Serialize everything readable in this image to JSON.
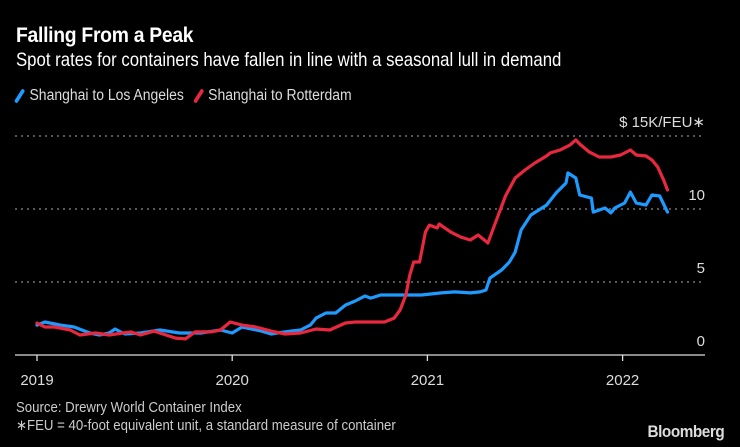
{
  "header": {
    "title": "Falling From a Peak",
    "subtitle": "Spot rates for containers have fallen in line with a seasonal lull in demand"
  },
  "footer": {
    "source": "Source: Drewry World Container Index",
    "note": "∗FEU = 40-foot equivalent unit, a standard measure of container",
    "logo": "Bloomberg"
  },
  "chart_data": {
    "type": "line",
    "title": "Falling From a Peak",
    "subtitle": "Spot rates for containers have fallen in line with a seasonal lull in demand",
    "xlabel": "",
    "ylabel": "$ 15K/FEU∗",
    "unit_label": "$ 15K/FEU∗",
    "ylim": [
      0,
      15
    ],
    "xlim": [
      2018.9,
      2022.4
    ],
    "yticks": [
      0,
      5,
      10,
      15
    ],
    "ytick_labels": [
      "0",
      "5",
      "10",
      "$ 15K/FEU∗"
    ],
    "xticks": [
      2019,
      2020,
      2021,
      2022
    ],
    "xtick_labels": [
      "2019",
      "2020",
      "2021",
      "2022"
    ],
    "grid": "horizontal dotted",
    "legend_position": "top-left",
    "series": [
      {
        "name": "Shanghai to Los Angeles",
        "color": "#1e9bff",
        "points": [
          [
            2019.0,
            2.05
          ],
          [
            2019.04,
            2.26
          ],
          [
            2019.12,
            2.05
          ],
          [
            2019.19,
            1.92
          ],
          [
            2019.27,
            1.51
          ],
          [
            2019.32,
            1.37
          ],
          [
            2019.37,
            1.51
          ],
          [
            2019.4,
            1.78
          ],
          [
            2019.45,
            1.44
          ],
          [
            2019.53,
            1.51
          ],
          [
            2019.63,
            1.71
          ],
          [
            2019.73,
            1.51
          ],
          [
            2019.84,
            1.51
          ],
          [
            2019.94,
            1.71
          ],
          [
            2020.0,
            1.51
          ],
          [
            2020.05,
            1.92
          ],
          [
            2020.15,
            1.64
          ],
          [
            2020.2,
            1.44
          ],
          [
            2020.23,
            1.51
          ],
          [
            2020.3,
            1.64
          ],
          [
            2020.35,
            1.71
          ],
          [
            2020.4,
            2.05
          ],
          [
            2020.43,
            2.53
          ],
          [
            2020.48,
            2.88
          ],
          [
            2020.53,
            2.88
          ],
          [
            2020.58,
            3.42
          ],
          [
            2020.63,
            3.7
          ],
          [
            2020.68,
            4.04
          ],
          [
            2020.71,
            3.9
          ],
          [
            2020.76,
            4.11
          ],
          [
            2020.84,
            4.11
          ],
          [
            2020.97,
            4.11
          ],
          [
            2021.07,
            4.25
          ],
          [
            2021.14,
            4.32
          ],
          [
            2021.22,
            4.25
          ],
          [
            2021.27,
            4.32
          ],
          [
            2021.3,
            4.45
          ],
          [
            2021.32,
            5.27
          ],
          [
            2021.38,
            5.82
          ],
          [
            2021.42,
            6.37
          ],
          [
            2021.45,
            7.05
          ],
          [
            2021.48,
            8.56
          ],
          [
            2021.53,
            9.59
          ],
          [
            2021.61,
            10.27
          ],
          [
            2021.66,
            11.1
          ],
          [
            2021.71,
            11.78
          ],
          [
            2021.72,
            12.47
          ],
          [
            2021.76,
            12.12
          ],
          [
            2021.78,
            10.96
          ],
          [
            2021.84,
            10.75
          ],
          [
            2021.85,
            9.79
          ],
          [
            2021.91,
            10.07
          ],
          [
            2021.94,
            9.73
          ],
          [
            2021.96,
            10.07
          ],
          [
            2022.01,
            10.41
          ],
          [
            2022.04,
            11.16
          ],
          [
            2022.07,
            10.41
          ],
          [
            2022.12,
            10.27
          ],
          [
            2022.15,
            10.96
          ],
          [
            2022.19,
            10.89
          ],
          [
            2022.22,
            10.07
          ],
          [
            2022.23,
            9.79
          ]
        ]
      },
      {
        "name": "Shanghai to Rotterdam",
        "color": "#e8283f",
        "points": [
          [
            2019.0,
            2.19
          ],
          [
            2019.04,
            1.92
          ],
          [
            2019.09,
            1.92
          ],
          [
            2019.17,
            1.71
          ],
          [
            2019.22,
            1.37
          ],
          [
            2019.3,
            1.51
          ],
          [
            2019.37,
            1.37
          ],
          [
            2019.48,
            1.58
          ],
          [
            2019.53,
            1.37
          ],
          [
            2019.6,
            1.64
          ],
          [
            2019.71,
            1.16
          ],
          [
            2019.76,
            1.1
          ],
          [
            2019.81,
            1.58
          ],
          [
            2019.89,
            1.58
          ],
          [
            2019.94,
            1.71
          ],
          [
            2019.99,
            2.26
          ],
          [
            2020.05,
            2.05
          ],
          [
            2020.12,
            1.92
          ],
          [
            2020.2,
            1.64
          ],
          [
            2020.27,
            1.44
          ],
          [
            2020.35,
            1.51
          ],
          [
            2020.43,
            1.78
          ],
          [
            2020.5,
            1.71
          ],
          [
            2020.58,
            2.19
          ],
          [
            2020.63,
            2.26
          ],
          [
            2020.71,
            2.26
          ],
          [
            2020.78,
            2.26
          ],
          [
            2020.83,
            2.53
          ],
          [
            2020.86,
            3.08
          ],
          [
            2020.89,
            4.11
          ],
          [
            2020.91,
            5.48
          ],
          [
            2020.93,
            6.37
          ],
          [
            2020.96,
            6.37
          ],
          [
            2020.99,
            8.42
          ],
          [
            2021.01,
            8.9
          ],
          [
            2021.05,
            8.7
          ],
          [
            2021.06,
            8.97
          ],
          [
            2021.12,
            8.42
          ],
          [
            2021.17,
            8.08
          ],
          [
            2021.22,
            7.88
          ],
          [
            2021.26,
            8.22
          ],
          [
            2021.31,
            7.67
          ],
          [
            2021.35,
            9.11
          ],
          [
            2021.4,
            10.89
          ],
          [
            2021.45,
            12.12
          ],
          [
            2021.5,
            12.67
          ],
          [
            2021.55,
            13.15
          ],
          [
            2021.61,
            13.63
          ],
          [
            2021.63,
            13.84
          ],
          [
            2021.68,
            14.04
          ],
          [
            2021.73,
            14.38
          ],
          [
            2021.76,
            14.73
          ],
          [
            2021.78,
            14.45
          ],
          [
            2021.83,
            13.9
          ],
          [
            2021.88,
            13.56
          ],
          [
            2021.94,
            13.56
          ],
          [
            2021.99,
            13.7
          ],
          [
            2022.04,
            14.04
          ],
          [
            2022.07,
            13.7
          ],
          [
            2022.12,
            13.63
          ],
          [
            2022.15,
            13.36
          ],
          [
            2022.18,
            12.88
          ],
          [
            2022.21,
            11.99
          ],
          [
            2022.23,
            11.3
          ]
        ]
      }
    ]
  }
}
